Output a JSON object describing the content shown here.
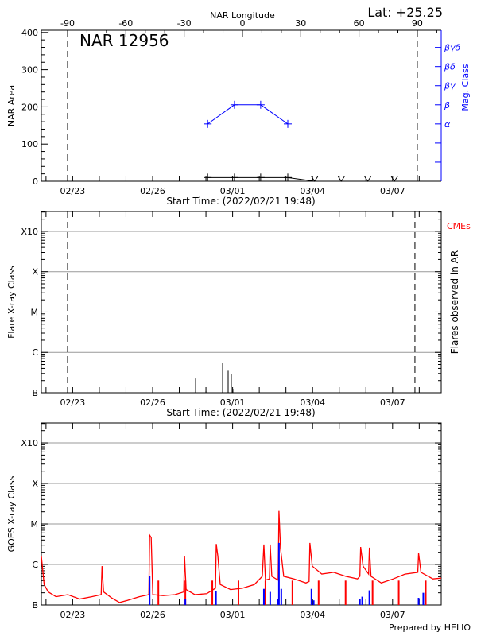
{
  "header": {
    "latitude": "Lat: +25.25"
  },
  "footer": {
    "credit": "Prepared by HELIO"
  },
  "chart_data": [
    {
      "type": "line",
      "title": "NAR 12956",
      "x_range": [
        "02/21 19:48",
        "03/08 19:48"
      ],
      "x_tick_labels": [
        "02/23",
        "02/26",
        "03/01",
        "03/04",
        "03/07"
      ],
      "xlabel": "Start Time: (2022/02/21 19:48)",
      "top_axis": {
        "label": "NAR Longitude",
        "range": [
          -103.5,
          102.3
        ],
        "ticks": [
          -90,
          -60,
          -30,
          0,
          30,
          60,
          90
        ]
      },
      "limb_longitudes": [
        -90,
        90
      ],
      "ylabel": "NAR Area",
      "ylim": [
        0,
        406
      ],
      "yticks": [
        0,
        100,
        200,
        300,
        400
      ],
      "y2label": "Mag. Class",
      "y2lim": [
        0,
        7.9
      ],
      "y2ticks": [
        1,
        2,
        3,
        4,
        5,
        6,
        7
      ],
      "y2tick_labels": [
        "",
        "",
        "α",
        "β",
        "βγ",
        "βδ",
        "βγδ"
      ],
      "area": {
        "t": [
          "02/28 01:30",
          "03/01 01:40",
          "03/02 01:15",
          "03/03 01:40",
          "03/04 01:50",
          "03/05 01:50",
          "03/06 01:40",
          "03/07 01:40"
        ],
        "values": [
          10,
          10,
          10,
          10,
          0,
          0,
          0,
          0
        ]
      },
      "mag_class": {
        "t": [
          "02/28 01:30",
          "03/01 01:40",
          "03/02 01:15",
          "03/03 01:40"
        ],
        "values": [
          3,
          4,
          4,
          3
        ]
      },
      "colors": {
        "area": "#000000",
        "mag_class": "#0000ff"
      },
      "grid": false
    },
    {
      "type": "bar",
      "x_range": [
        "02/21 19:48",
        "03/08 19:48"
      ],
      "x_tick_labels": [
        "02/23",
        "02/26",
        "03/01",
        "03/04",
        "03/07"
      ],
      "xlabel": "Start Time: (2022/02/21 19:48)",
      "ylabel": "Flare X-ray Class",
      "y_scale": "log",
      "ylim": [
        1e-07,
        0.0031
      ],
      "yticks": [
        1e-07,
        1e-06,
        1e-05,
        0.0001,
        0.001
      ],
      "ytick_labels": [
        "B",
        "C",
        "M",
        "X",
        "X10"
      ],
      "y2label": "Flares observed in AR",
      "cme_legend": "CMEs",
      "limb_longitudes": [
        -90,
        90
      ],
      "flares": {
        "t": [
          "02/27 00:30",
          "02/27 14:40",
          "02/28 00:00",
          "02/28 15:00",
          "02/28 20:00",
          "02/28 22:50",
          "03/01 00:15"
        ],
        "flux": [
          1.15e-07,
          2.25e-07,
          1.1e-07,
          5.6e-07,
          3.5e-07,
          2.95e-07,
          1.25e-07
        ]
      },
      "colors": {
        "flares": "#000000",
        "cme": "#ff0000",
        "grid": "#999999"
      },
      "grid": true
    },
    {
      "type": "line",
      "x_range": [
        "02/21 19:48",
        "03/08 19:48"
      ],
      "x_tick_labels": [
        "02/23",
        "02/26",
        "03/01",
        "03/04",
        "03/07"
      ],
      "ylabel": "GOES X-ray Class",
      "y_scale": "log",
      "ylim": [
        1e-07,
        0.0031
      ],
      "yticks": [
        1e-07,
        1e-06,
        1e-05,
        0.0001,
        0.001
      ],
      "ytick_labels": [
        "B",
        "C",
        "M",
        "X",
        "X10"
      ],
      "goes": {
        "t": [
          "02/21 19:48",
          "02/21 22:20",
          "02/22 02:00",
          "02/22 09:00",
          "02/22 19:40",
          "02/23 06:25",
          "02/23 17:10",
          "02/24 01:40",
          "02/24 02:25",
          "02/24 03:50",
          "02/24 11:00",
          "02/24 18:10",
          "02/25 01:20",
          "02/25 12:00",
          "02/25 20:35",
          "02/25 21:17",
          "02/25 22:42",
          "02/26 00:09",
          "02/26 09:26",
          "02/26 20:09",
          "02/27 04:00",
          "02/27 04:43",
          "02/27 06:09",
          "02/27 14:00",
          "02/28 00:43",
          "02/28 08:34",
          "02/28 09:17",
          "02/28 10:43",
          "02/28 12:51",
          "02/28 22:09",
          "03/01 08:51",
          "03/01 19:34",
          "03/02 02:43",
          "03/02 04:09",
          "03/02 05:34",
          "03/02 09:09",
          "03/02 09:51",
          "03/02 11:17",
          "03/02 17:00",
          "03/02 17:43",
          "03/02 19:09",
          "03/02 22:00",
          "03/03 07:17",
          "03/03 18:00",
          "03/03 20:51",
          "03/03 21:34",
          "03/03 23:43",
          "03/04 08:17",
          "03/04 19:00",
          "03/05 05:43",
          "03/05 16:26",
          "03/05 18:34",
          "03/05 19:17",
          "03/05 21:26",
          "03/06 02:26",
          "03/06 03:09",
          "03/06 04:34",
          "03/06 13:51",
          "03/07 00:34",
          "03/07 11:17",
          "03/07 22:43",
          "03/07 23:26",
          "03/08 01:34",
          "03/08 12:17",
          "03/08 19:48"
        ],
        "flux": [
          1.6e-06,
          3.2e-07,
          2.1e-07,
          1.6e-07,
          1.8e-07,
          1.4e-07,
          1.6e-07,
          1.8e-07,
          9.1e-07,
          2.1e-07,
          1.5e-07,
          1.15e-07,
          1.3e-07,
          1.6e-07,
          1.8e-07,
          5.3e-06,
          4.6e-06,
          1.8e-07,
          1.7e-07,
          1.8e-07,
          2.1e-07,
          1.6e-06,
          2.4e-07,
          1.8e-07,
          1.9e-07,
          2.6e-07,
          3.2e-06,
          1.6e-06,
          3.2e-07,
          2.4e-07,
          2.6e-07,
          3.2e-07,
          5.1e-07,
          3.1e-06,
          4.1e-07,
          4.4e-07,
          3.1e-06,
          5.1e-07,
          4.1e-07,
          2.1e-05,
          2.5e-06,
          5.1e-07,
          4.4e-07,
          3.5e-07,
          3.8e-07,
          3.4e-06,
          9.1e-07,
          5.8e-07,
          6.4e-07,
          5.1e-07,
          4.4e-07,
          5.1e-07,
          2.7e-06,
          9.1e-07,
          5.8e-07,
          2.6e-06,
          5.1e-07,
          3.5e-07,
          4.4e-07,
          5.8e-07,
          6.4e-07,
          1.9e-06,
          6.4e-07,
          4.4e-07,
          4.6e-07
        ]
      },
      "dropouts": [
        "02/26 05:09",
        "02/27 05:26",
        "02/28 05:43",
        "03/01 05:17",
        "03/02 05:34",
        "03/03 05:51",
        "03/04 05:26",
        "03/05 05:43",
        "03/06 06:00",
        "03/07 05:34",
        "03/08 05:51"
      ],
      "events": {
        "t": [
          "02/25 21:17",
          "02/27 05:26",
          "02/28 09:00",
          "03/02 04:10",
          "03/02 09:50",
          "03/02 17:00",
          "03/02 17:43",
          "03/02 19:50",
          "03/03 23:00",
          "03/04 01:00",
          "03/05 18:34",
          "03/05 20:40",
          "03/06 03:09",
          "03/07 23:26",
          "03/08 03:40"
        ],
        "flux": [
          5.1e-07,
          1.4e-07,
          2.2e-07,
          2.5e-07,
          2.1e-07,
          1.4e-07,
          3.4e-06,
          2.5e-07,
          2.5e-07,
          1.3e-07,
          1.4e-07,
          1.6e-07,
          2.3e-07,
          1.5e-07,
          2e-07
        ]
      },
      "colors": {
        "goes": "#ff0000",
        "events": "#0000ff",
        "grid": "#999999"
      },
      "grid": true
    }
  ]
}
